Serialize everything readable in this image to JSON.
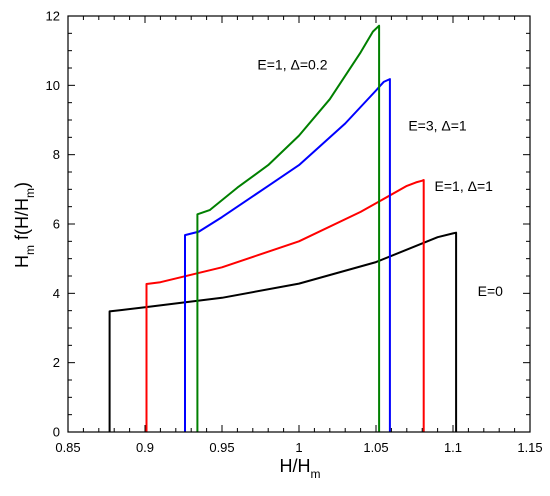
{
  "chart_data": {
    "type": "line",
    "xlabel": {
      "main": "H/H",
      "sub": "m"
    },
    "ylabel": {
      "p1": "H",
      "p1sub": "m",
      "p2": " f(H/H",
      "p2sub": "m",
      "p3": ")"
    },
    "xlim": [
      0.85,
      1.15
    ],
    "ylim": [
      0,
      12
    ],
    "xticks": [
      0.85,
      0.9,
      0.95,
      1,
      1.05,
      1.1,
      1.15
    ],
    "xtick_labels": [
      "0.85",
      "0.9",
      "0.95",
      "1",
      "1.05",
      "1.1",
      "1.15"
    ],
    "yticks": [
      0,
      2,
      4,
      6,
      8,
      10,
      12
    ],
    "ytick_labels": [
      "0",
      "2",
      "4",
      "6",
      "8",
      "10",
      "12"
    ],
    "grid": false,
    "legend": "none",
    "series": [
      {
        "color": "#000000",
        "x": [
          0.877,
          0.877,
          0.885,
          0.9,
          0.95,
          1.0,
          1.05,
          1.09,
          1.1,
          1.102,
          1.102
        ],
        "y": [
          0,
          3.48,
          3.52,
          3.6,
          3.87,
          4.28,
          4.9,
          5.62,
          5.73,
          5.75,
          0
        ]
      },
      {
        "color": "#ff0000",
        "x": [
          0.901,
          0.901,
          0.91,
          0.95,
          1.0,
          1.04,
          1.07,
          1.076,
          1.08,
          1.081,
          1.081
        ],
        "y": [
          0,
          4.27,
          4.32,
          4.75,
          5.5,
          6.35,
          7.1,
          7.2,
          7.25,
          7.27,
          0
        ]
      },
      {
        "color": "#0000ff",
        "x": [
          0.926,
          0.926,
          0.935,
          0.95,
          0.98,
          1.0,
          1.03,
          1.05,
          1.055,
          1.059,
          1.059
        ],
        "y": [
          0,
          5.68,
          5.78,
          6.2,
          7.1,
          7.7,
          8.9,
          9.85,
          10.1,
          10.18,
          0
        ]
      },
      {
        "color": "#008000",
        "x": [
          0.934,
          0.934,
          0.942,
          0.96,
          0.98,
          1.0,
          1.02,
          1.04,
          1.048,
          1.052,
          1.052
        ],
        "y": [
          0,
          6.28,
          6.4,
          7.05,
          7.7,
          8.55,
          9.6,
          10.95,
          11.55,
          11.72,
          0
        ]
      }
    ],
    "annotations": [
      {
        "text": "E=1, Δ=0.2",
        "x": 0.973,
        "y": 10.45,
        "color": "#000000"
      },
      {
        "text": "E=3, Δ=1",
        "x": 1.071,
        "y": 8.7,
        "color": "#000000"
      },
      {
        "text": "E=1, Δ=1",
        "x": 1.088,
        "y": 6.95,
        "color": "#000000"
      },
      {
        "text": "E=0",
        "x": 1.116,
        "y": 3.92,
        "color": "#000000"
      }
    ]
  }
}
